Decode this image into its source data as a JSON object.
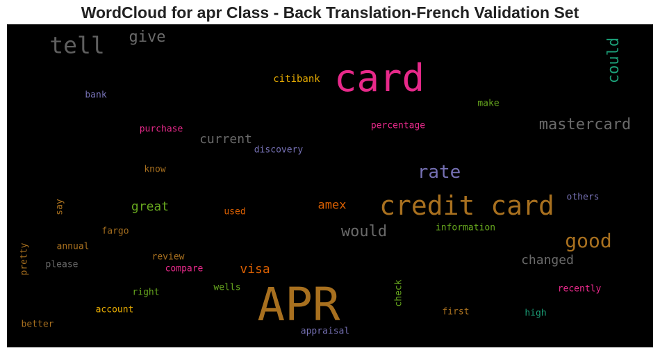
{
  "title": "WordCloud for apr Class - Back Translation-French Validation Set",
  "chart_data": {
    "type": "wordcloud",
    "title": "WordCloud for apr Class - Back Translation-French Validation Set",
    "words": [
      {
        "text": "APR",
        "color": "#a8701f"
      },
      {
        "text": "card",
        "color": "#e7298a"
      },
      {
        "text": "credit card",
        "color": "#a8701f"
      },
      {
        "text": "tell",
        "color": "#5f5f5f"
      },
      {
        "text": "give",
        "color": "#6a6a6a"
      },
      {
        "text": "could",
        "color": "#1b9e77"
      },
      {
        "text": "mastercard",
        "color": "#6a6a6a"
      },
      {
        "text": "rate",
        "color": "#7570b3"
      },
      {
        "text": "good",
        "color": "#a8701f"
      },
      {
        "text": "would",
        "color": "#6a6a6a"
      },
      {
        "text": "current",
        "color": "#6a6a6a"
      },
      {
        "text": "great",
        "color": "#66a61e"
      },
      {
        "text": "amex",
        "color": "#d95f02"
      },
      {
        "text": "visa",
        "color": "#d95f02"
      },
      {
        "text": "changed",
        "color": "#6a6a6a"
      },
      {
        "text": "citibank",
        "color": "#e6ab02"
      },
      {
        "text": "bank",
        "color": "#7570b3"
      },
      {
        "text": "make",
        "color": "#66a61e"
      },
      {
        "text": "purchase",
        "color": "#e7298a"
      },
      {
        "text": "percentage",
        "color": "#e7298a"
      },
      {
        "text": "discovery",
        "color": "#7570b3"
      },
      {
        "text": "know",
        "color": "#a8701f"
      },
      {
        "text": "others",
        "color": "#7570b3"
      },
      {
        "text": "say",
        "color": "#a8701f"
      },
      {
        "text": "used",
        "color": "#d95f02"
      },
      {
        "text": "information",
        "color": "#66a61e"
      },
      {
        "text": "fargo",
        "color": "#a8701f"
      },
      {
        "text": "annual",
        "color": "#a8701f"
      },
      {
        "text": "pretty",
        "color": "#a8701f"
      },
      {
        "text": "please",
        "color": "#6a6a6a"
      },
      {
        "text": "review",
        "color": "#a8701f"
      },
      {
        "text": "compare",
        "color": "#e7298a"
      },
      {
        "text": "right",
        "color": "#66a61e"
      },
      {
        "text": "wells",
        "color": "#66a61e"
      },
      {
        "text": "check",
        "color": "#66a61e"
      },
      {
        "text": "recently",
        "color": "#e7298a"
      },
      {
        "text": "account",
        "color": "#e6ab02"
      },
      {
        "text": "first",
        "color": "#a8701f"
      },
      {
        "text": "high",
        "color": "#1b9e77"
      },
      {
        "text": "better",
        "color": "#a8701f"
      },
      {
        "text": "appraisal",
        "color": "#7570b3"
      }
    ]
  }
}
